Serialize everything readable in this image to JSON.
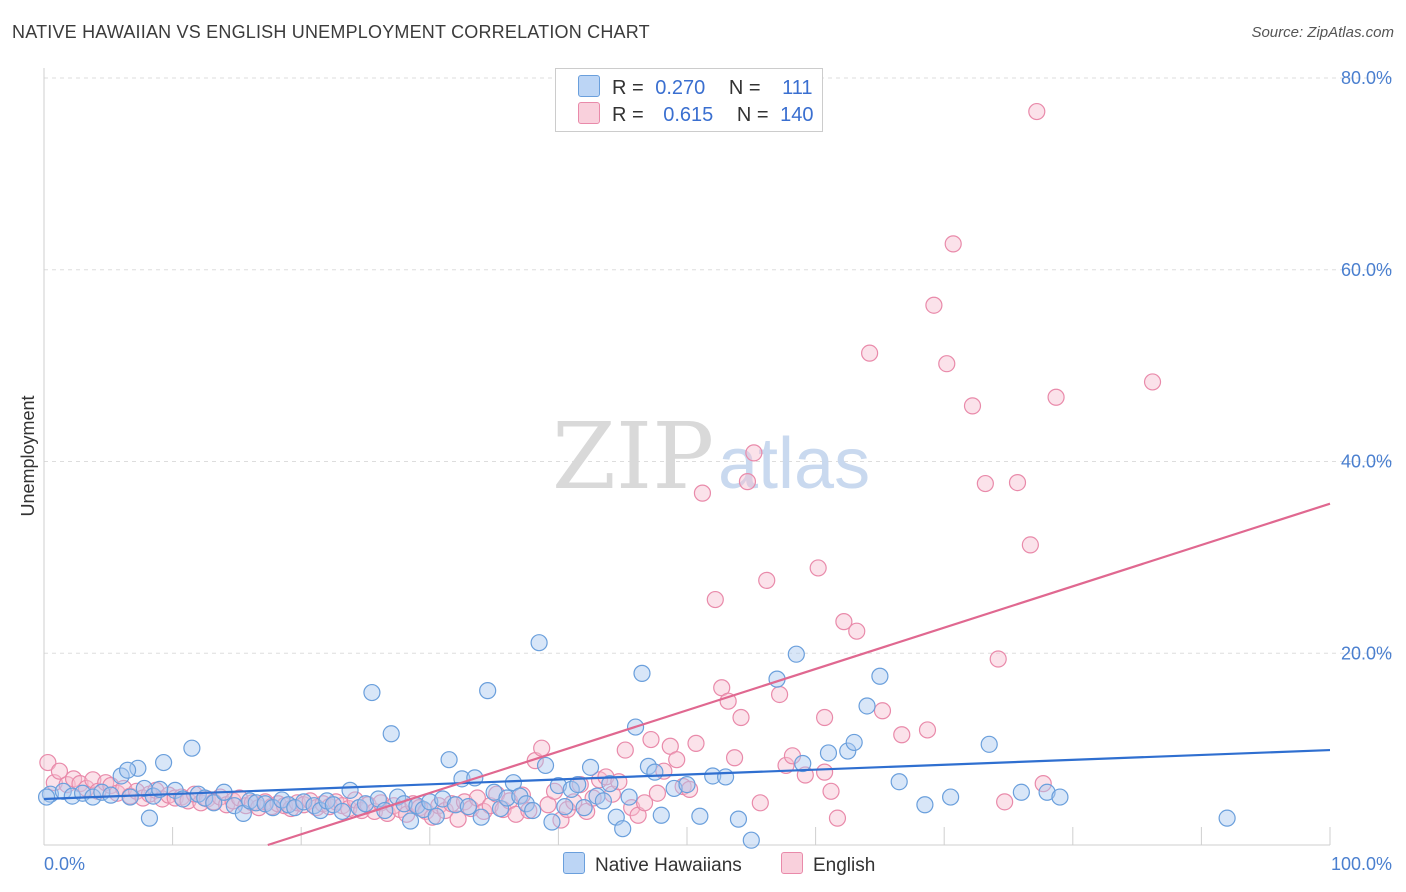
{
  "title": "NATIVE HAWAIIAN VS ENGLISH UNEMPLOYMENT CORRELATION CHART",
  "source": "Source: ZipAtlas.com",
  "watermark": {
    "zip": "ZIP",
    "atlas": "atlas"
  },
  "legend": {
    "rows": [
      {
        "r_label": "R =",
        "r_value": "0.270",
        "n_label": "N =",
        "n_value": "111"
      },
      {
        "r_label": "R =",
        "r_value": "0.615",
        "n_label": "N =",
        "n_value": "140"
      }
    ]
  },
  "bottom_legend": {
    "native": "Native Hawaiians",
    "english": "English"
  },
  "colors": {
    "blue_fill": "#a9c8f0",
    "blue_stroke": "#6a9fdc",
    "blue_line": "#2f6fd0",
    "pink_fill": "#f7bfd0",
    "pink_stroke": "#e98aaa",
    "pink_line": "#e06890"
  },
  "chart_data": {
    "type": "scatter",
    "title": "NATIVE HAWAIIAN VS ENGLISH UNEMPLOYMENT CORRELATION CHART",
    "xlabel": "",
    "ylabel": "Unemployment",
    "xlim": [
      0,
      100
    ],
    "ylim": [
      0,
      80
    ],
    "x_ticks": [
      "0.0%",
      "100.0%"
    ],
    "y_ticks": [
      "20.0%",
      "40.0%",
      "60.0%",
      "80.0%"
    ],
    "grid": true,
    "series": [
      {
        "name": "Native Hawaiians",
        "trend": {
          "x": [
            0,
            100
          ],
          "y": [
            4.8,
            9.9
          ]
        },
        "points": [
          [
            0.5,
            5.3
          ],
          [
            1.5,
            5.6
          ],
          [
            2.2,
            5.1
          ],
          [
            3.0,
            5.4
          ],
          [
            3.8,
            5.0
          ],
          [
            4.5,
            5.5
          ],
          [
            5.2,
            5.2
          ],
          [
            6.0,
            7.2
          ],
          [
            6.7,
            5.0
          ],
          [
            7.3,
            8.0
          ],
          [
            6.5,
            7.8
          ],
          [
            7.8,
            5.9
          ],
          [
            8.2,
            2.8
          ],
          [
            8.5,
            5.1
          ],
          [
            9.0,
            5.8
          ],
          [
            9.3,
            8.6
          ],
          [
            10.2,
            5.7
          ],
          [
            10.8,
            4.8
          ],
          [
            11.5,
            10.1
          ],
          [
            12.0,
            5.3
          ],
          [
            12.5,
            4.9
          ],
          [
            13.2,
            4.4
          ],
          [
            14.0,
            5.5
          ],
          [
            14.8,
            4.1
          ],
          [
            15.5,
            3.3
          ],
          [
            16.0,
            4.6
          ],
          [
            16.5,
            4.4
          ],
          [
            17.2,
            4.3
          ],
          [
            17.8,
            3.9
          ],
          [
            18.5,
            4.7
          ],
          [
            19.0,
            4.2
          ],
          [
            19.5,
            3.9
          ],
          [
            20.2,
            4.5
          ],
          [
            21.0,
            4.1
          ],
          [
            21.5,
            3.6
          ],
          [
            22.0,
            4.6
          ],
          [
            22.5,
            4.2
          ],
          [
            23.2,
            3.5
          ],
          [
            23.8,
            5.7
          ],
          [
            24.5,
            3.9
          ],
          [
            25.0,
            4.3
          ],
          [
            25.5,
            15.9
          ],
          [
            26.0,
            4.8
          ],
          [
            26.5,
            3.6
          ],
          [
            27.0,
            11.6
          ],
          [
            27.5,
            5.0
          ],
          [
            28.0,
            4.3
          ],
          [
            28.5,
            2.5
          ],
          [
            29.0,
            4.1
          ],
          [
            29.5,
            3.7
          ],
          [
            30.0,
            4.5
          ],
          [
            30.5,
            3.0
          ],
          [
            31.0,
            4.8
          ],
          [
            31.5,
            8.9
          ],
          [
            32.0,
            4.2
          ],
          [
            32.5,
            6.9
          ],
          [
            33.0,
            4.0
          ],
          [
            33.5,
            7.0
          ],
          [
            34.0,
            2.9
          ],
          [
            34.5,
            16.1
          ],
          [
            35.0,
            5.5
          ],
          [
            35.5,
            3.8
          ],
          [
            36.0,
            4.9
          ],
          [
            36.5,
            6.5
          ],
          [
            37.0,
            5.1
          ],
          [
            37.5,
            4.3
          ],
          [
            38.0,
            3.6
          ],
          [
            38.5,
            21.1
          ],
          [
            39.0,
            8.3
          ],
          [
            39.5,
            2.4
          ],
          [
            40.0,
            6.2
          ],
          [
            40.5,
            4.0
          ],
          [
            41.0,
            5.8
          ],
          [
            41.5,
            6.3
          ],
          [
            42.0,
            3.9
          ],
          [
            42.5,
            8.1
          ],
          [
            43.0,
            5.1
          ],
          [
            43.5,
            4.6
          ],
          [
            44.0,
            6.4
          ],
          [
            44.5,
            2.9
          ],
          [
            45.0,
            1.7
          ],
          [
            45.5,
            5.0
          ],
          [
            46.0,
            12.3
          ],
          [
            46.5,
            17.9
          ],
          [
            47.0,
            8.2
          ],
          [
            47.5,
            7.6
          ],
          [
            48.0,
            3.1
          ],
          [
            49.0,
            5.9
          ],
          [
            50.0,
            6.3
          ],
          [
            51.0,
            3.0
          ],
          [
            52.0,
            7.2
          ],
          [
            53.0,
            7.1
          ],
          [
            54.0,
            2.7
          ],
          [
            55.0,
            0.5
          ],
          [
            57.0,
            17.3
          ],
          [
            58.5,
            19.9
          ],
          [
            59.0,
            8.5
          ],
          [
            61.0,
            9.6
          ],
          [
            62.5,
            9.8
          ],
          [
            63.0,
            10.7
          ],
          [
            64.0,
            14.5
          ],
          [
            65.0,
            17.6
          ],
          [
            66.5,
            6.6
          ],
          [
            68.5,
            4.2
          ],
          [
            70.5,
            5.0
          ],
          [
            73.5,
            10.5
          ],
          [
            76.0,
            5.5
          ],
          [
            78.0,
            5.5
          ],
          [
            79.0,
            5.0
          ],
          [
            92.0,
            2.8
          ],
          [
            0.2,
            5.0
          ]
        ]
      },
      {
        "name": "English",
        "trend": {
          "x": [
            0,
            100
          ],
          "y": [
            -7.5,
            35.6
          ]
        },
        "points": [
          [
            0.3,
            8.6
          ],
          [
            0.8,
            6.5
          ],
          [
            1.2,
            7.7
          ],
          [
            1.8,
            6.3
          ],
          [
            2.3,
            6.9
          ],
          [
            2.8,
            6.4
          ],
          [
            3.3,
            5.9
          ],
          [
            3.8,
            6.8
          ],
          [
            4.2,
            5.6
          ],
          [
            4.8,
            6.5
          ],
          [
            5.2,
            6.2
          ],
          [
            5.7,
            5.4
          ],
          [
            6.2,
            5.9
          ],
          [
            6.7,
            5.1
          ],
          [
            7.2,
            5.6
          ],
          [
            7.7,
            4.9
          ],
          [
            8.2,
            5.3
          ],
          [
            8.7,
            5.7
          ],
          [
            9.2,
            4.8
          ],
          [
            9.7,
            5.2
          ],
          [
            10.2,
            4.9
          ],
          [
            10.7,
            5.0
          ],
          [
            11.2,
            4.6
          ],
          [
            11.7,
            5.3
          ],
          [
            12.2,
            4.4
          ],
          [
            12.7,
            4.8
          ],
          [
            13.2,
            4.5
          ],
          [
            13.7,
            5.0
          ],
          [
            14.2,
            4.2
          ],
          [
            14.7,
            4.6
          ],
          [
            15.2,
            4.9
          ],
          [
            15.7,
            4.1
          ],
          [
            16.2,
            4.4
          ],
          [
            16.7,
            3.9
          ],
          [
            17.2,
            4.5
          ],
          [
            17.7,
            4.0
          ],
          [
            18.2,
            4.3
          ],
          [
            18.7,
            4.1
          ],
          [
            19.2,
            3.8
          ],
          [
            19.7,
            4.4
          ],
          [
            20.2,
            4.2
          ],
          [
            20.7,
            4.6
          ],
          [
            21.2,
            3.9
          ],
          [
            21.7,
            4.3
          ],
          [
            22.2,
            4.0
          ],
          [
            22.7,
            4.5
          ],
          [
            23.2,
            4.1
          ],
          [
            23.7,
            3.8
          ],
          [
            24.2,
            4.7
          ],
          [
            24.7,
            3.6
          ],
          [
            25.2,
            4.2
          ],
          [
            25.7,
            3.5
          ],
          [
            26.2,
            4.4
          ],
          [
            26.7,
            3.3
          ],
          [
            27.2,
            4.1
          ],
          [
            27.7,
            3.7
          ],
          [
            28.2,
            3.2
          ],
          [
            28.7,
            4.3
          ],
          [
            29.2,
            3.9
          ],
          [
            29.7,
            3.5
          ],
          [
            30.2,
            2.9
          ],
          [
            30.7,
            4.1
          ],
          [
            31.2,
            3.6
          ],
          [
            31.7,
            4.3
          ],
          [
            32.2,
            2.7
          ],
          [
            32.7,
            4.5
          ],
          [
            33.2,
            3.8
          ],
          [
            33.7,
            4.9
          ],
          [
            34.2,
            3.5
          ],
          [
            34.7,
            4.1
          ],
          [
            35.2,
            5.3
          ],
          [
            35.7,
            3.7
          ],
          [
            36.2,
            4.6
          ],
          [
            36.7,
            3.2
          ],
          [
            37.2,
            5.2
          ],
          [
            37.7,
            3.6
          ],
          [
            38.2,
            8.8
          ],
          [
            38.7,
            10.1
          ],
          [
            39.2,
            4.2
          ],
          [
            39.7,
            5.6
          ],
          [
            40.2,
            2.6
          ],
          [
            40.7,
            3.7
          ],
          [
            41.2,
            4.5
          ],
          [
            41.7,
            6.3
          ],
          [
            42.2,
            3.5
          ],
          [
            42.7,
            4.9
          ],
          [
            43.2,
            6.8
          ],
          [
            43.7,
            7.1
          ],
          [
            44.2,
            5.3
          ],
          [
            44.7,
            6.6
          ],
          [
            45.2,
            9.9
          ],
          [
            45.7,
            3.9
          ],
          [
            46.2,
            3.1
          ],
          [
            46.7,
            4.4
          ],
          [
            47.2,
            11.0
          ],
          [
            47.7,
            5.4
          ],
          [
            48.2,
            7.7
          ],
          [
            48.7,
            10.3
          ],
          [
            49.2,
            8.9
          ],
          [
            49.7,
            6.1
          ],
          [
            50.2,
            5.8
          ],
          [
            50.7,
            10.6
          ],
          [
            51.2,
            36.7
          ],
          [
            52.2,
            25.6
          ],
          [
            52.7,
            16.4
          ],
          [
            53.2,
            15.0
          ],
          [
            53.7,
            9.1
          ],
          [
            54.2,
            13.3
          ],
          [
            54.7,
            37.9
          ],
          [
            55.2,
            40.9
          ],
          [
            55.7,
            4.4
          ],
          [
            56.2,
            27.6
          ],
          [
            57.2,
            15.7
          ],
          [
            57.7,
            8.3
          ],
          [
            58.2,
            9.3
          ],
          [
            59.2,
            7.3
          ],
          [
            60.2,
            28.9
          ],
          [
            60.7,
            7.6
          ],
          [
            61.2,
            5.6
          ],
          [
            61.7,
            2.8
          ],
          [
            62.2,
            23.3
          ],
          [
            63.2,
            22.3
          ],
          [
            64.2,
            51.3
          ],
          [
            65.2,
            14.0
          ],
          [
            66.7,
            11.5
          ],
          [
            68.7,
            12.0
          ],
          [
            69.2,
            56.3
          ],
          [
            70.2,
            50.2
          ],
          [
            70.7,
            62.7
          ],
          [
            72.2,
            45.8
          ],
          [
            73.2,
            37.7
          ],
          [
            74.7,
            4.5
          ],
          [
            74.2,
            19.4
          ],
          [
            75.7,
            37.8
          ],
          [
            76.7,
            31.3
          ],
          [
            77.7,
            6.4
          ],
          [
            78.7,
            46.7
          ],
          [
            77.2,
            76.5
          ],
          [
            86.2,
            48.3
          ],
          [
            60.7,
            13.3
          ]
        ]
      }
    ]
  }
}
